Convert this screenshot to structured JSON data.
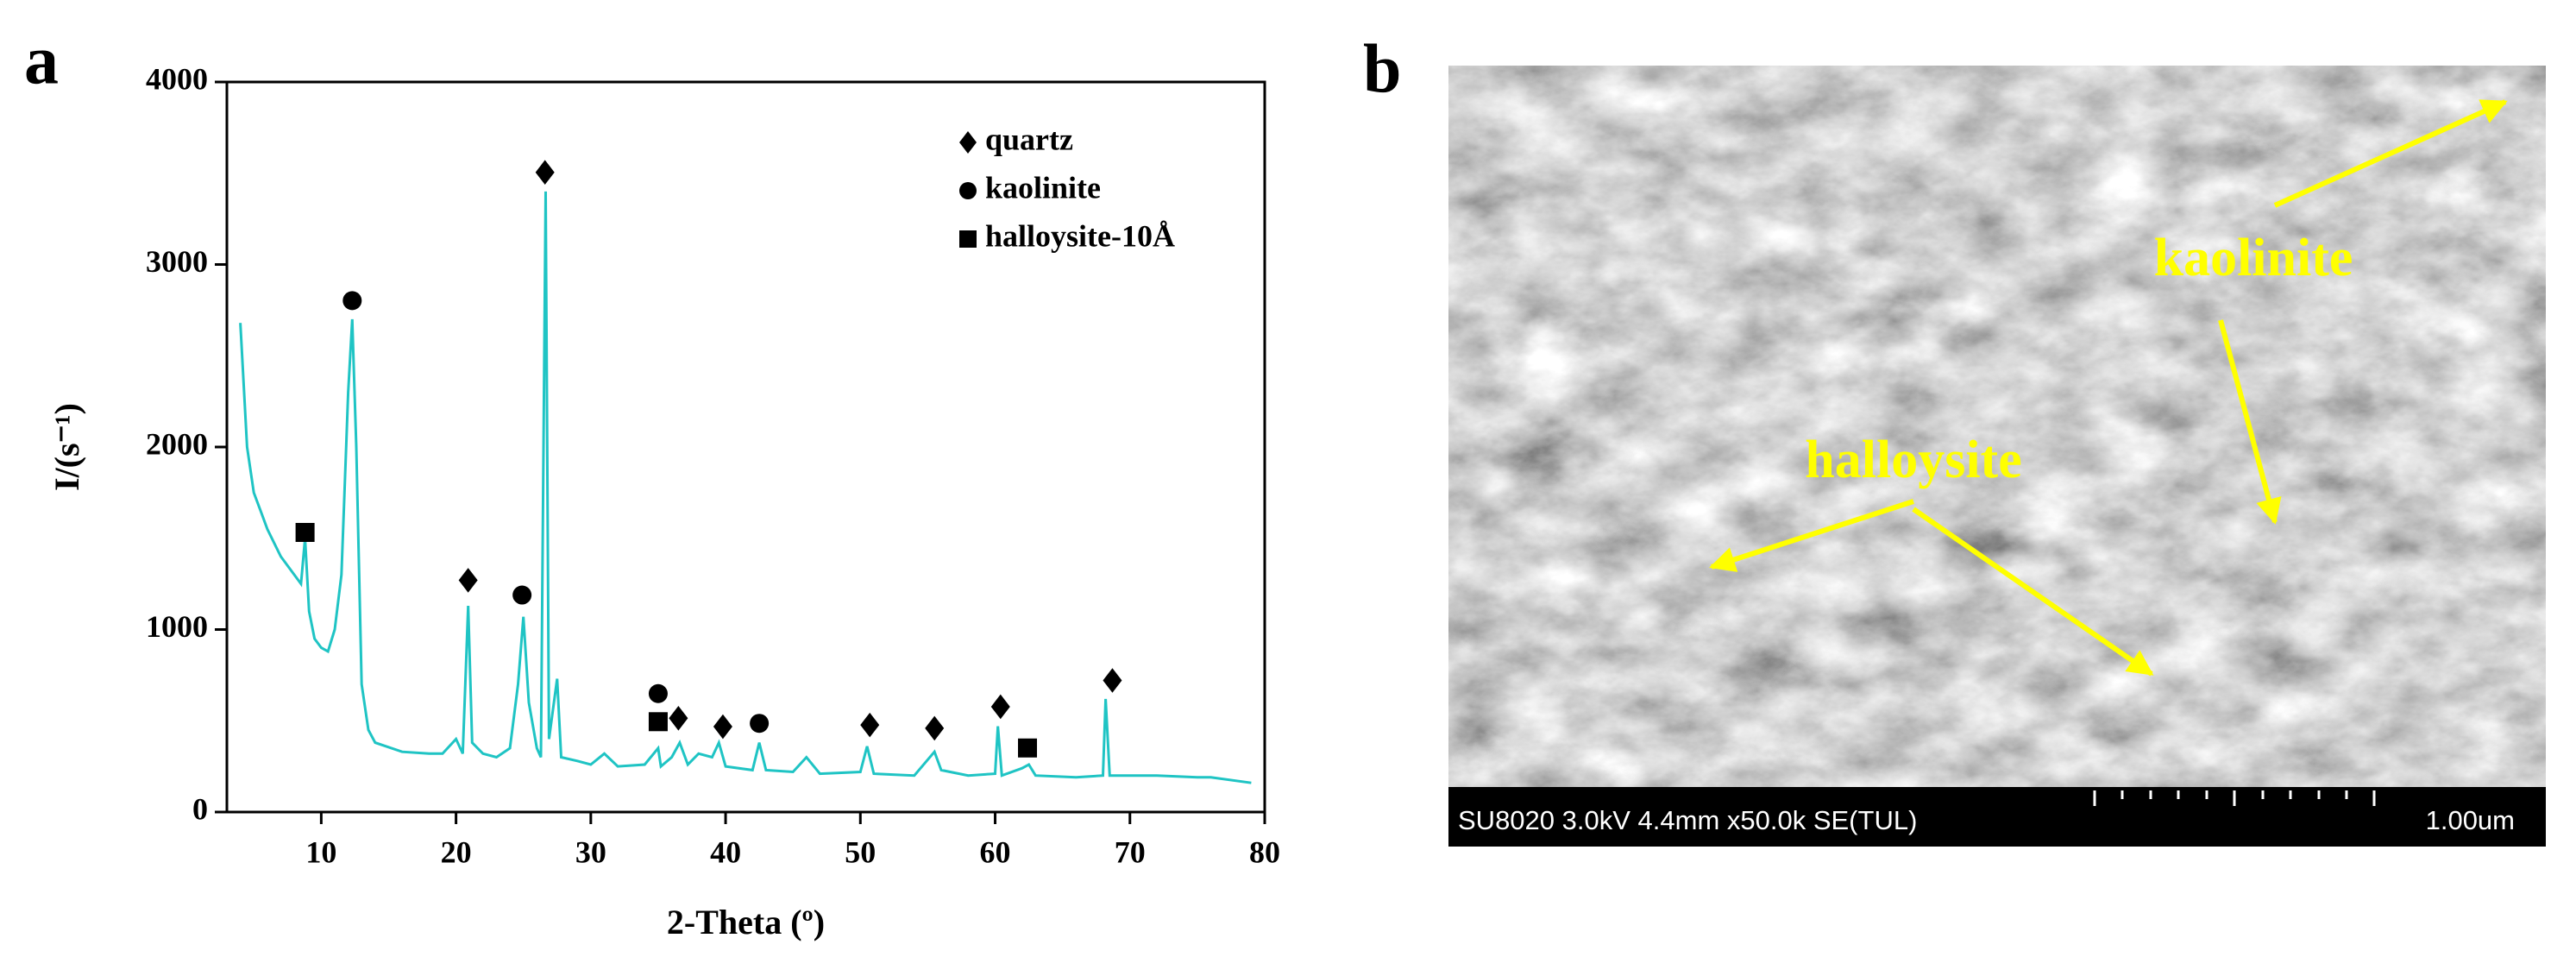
{
  "panel_labels": [
    "a",
    "b"
  ],
  "chart_data": {
    "type": "line",
    "xlabel": "2-Theta (º)",
    "ylabel": "I/(s⁻¹)",
    "color": "#1fc4c4",
    "x": [
      4,
      4.5,
      5,
      5.5,
      6,
      7,
      8,
      8.5,
      8.8,
      9.1,
      9.5,
      10,
      10.5,
      11,
      11.5,
      12,
      12.3,
      12.6,
      13,
      13.5,
      14,
      16,
      18,
      19,
      20,
      20.5,
      20.9,
      21.2,
      22,
      23,
      24,
      24.6,
      25,
      25.4,
      26,
      26.3,
      26.65,
      26.9,
      27.5,
      27.8,
      29,
      30,
      31,
      32,
      34,
      35,
      35.2,
      36,
      36.6,
      37.2,
      38,
      39,
      39.5,
      40,
      42,
      42.5,
      43,
      45,
      46,
      47,
      50,
      50.5,
      51,
      54,
      55.5,
      56,
      58,
      60,
      60.2,
      60.5,
      62,
      62.5,
      63,
      66,
      68,
      68.2,
      68.5,
      72,
      75,
      76,
      79
    ],
    "values": [
      2680,
      2000,
      1750,
      1650,
      1550,
      1400,
      1300,
      1250,
      1500,
      1100,
      950,
      900,
      880,
      1000,
      1300,
      2300,
      2700,
      2000,
      700,
      450,
      380,
      330,
      320,
      320,
      400,
      320,
      1130,
      380,
      320,
      300,
      350,
      700,
      1070,
      600,
      350,
      300,
      3400,
      400,
      730,
      300,
      280,
      260,
      320,
      250,
      260,
      350,
      250,
      300,
      380,
      260,
      320,
      300,
      380,
      250,
      230,
      380,
      230,
      220,
      300,
      210,
      220,
      360,
      210,
      200,
      330,
      230,
      200,
      210,
      470,
      200,
      240,
      260,
      200,
      190,
      200,
      620,
      200,
      200,
      190,
      190,
      160
    ],
    "xlim": [
      3,
      80
    ],
    "ylim": [
      0,
      4000
    ],
    "xticks": [
      10,
      20,
      30,
      40,
      50,
      60,
      70,
      80
    ],
    "yticks": [
      0,
      1000,
      2000,
      3000,
      4000
    ],
    "markers": [
      {
        "name": "quartz",
        "shape": "diamond",
        "x": [
          20.9,
          26.6,
          36.5,
          39.8,
          50.7,
          55.5,
          60.4,
          68.7
        ],
        "y": [
          1270,
          3505,
          514,
          468,
          477,
          459,
          577,
          721
        ]
      },
      {
        "name": "kaolinite",
        "shape": "circle",
        "x": [
          12.3,
          24.9,
          35.0,
          42.5
        ],
        "y": [
          2802,
          1189,
          649,
          486
        ]
      },
      {
        "name": "halloysite-10Å",
        "shape": "square",
        "x": [
          8.8,
          35.0,
          62.4
        ],
        "y": [
          1532,
          495,
          351
        ]
      }
    ]
  },
  "image": {
    "annotations": [
      "kaolinite",
      "halloysite"
    ],
    "caption_bar": "SU8020 3.0kV 4.4mm x50.0k SE(TUL)",
    "scale_label": "1.00um"
  }
}
